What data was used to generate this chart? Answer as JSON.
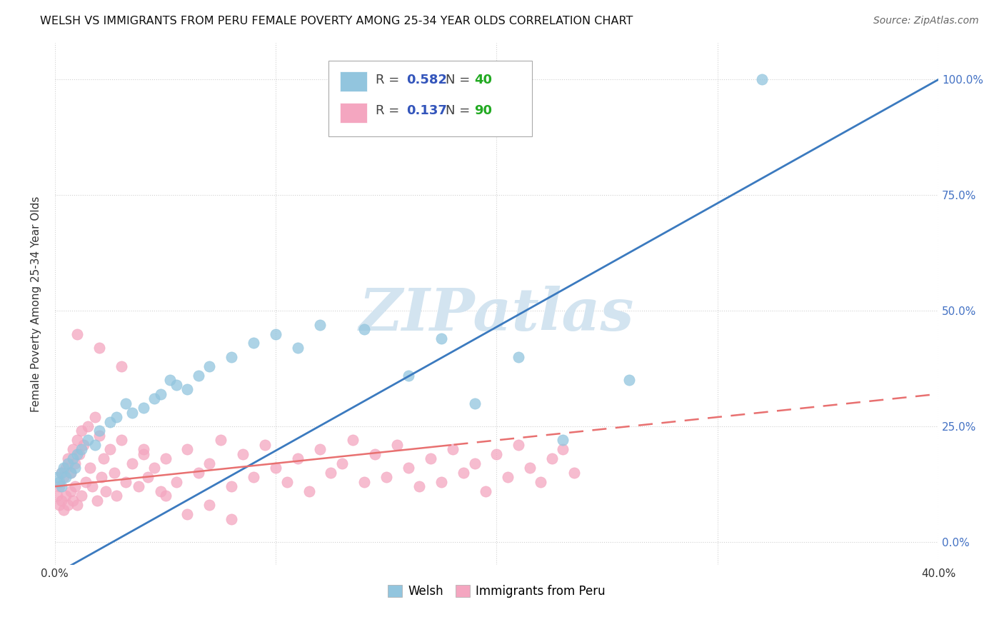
{
  "title": "WELSH VS IMMIGRANTS FROM PERU FEMALE POVERTY AMONG 25-34 YEAR OLDS CORRELATION CHART",
  "source": "Source: ZipAtlas.com",
  "ylabel": "Female Poverty Among 25-34 Year Olds",
  "xlim": [
    0.0,
    0.4
  ],
  "ylim": [
    -0.05,
    1.08
  ],
  "x_ticks": [
    0.0,
    0.1,
    0.2,
    0.3,
    0.4
  ],
  "y_ticks": [
    0.0,
    0.25,
    0.5,
    0.75,
    1.0
  ],
  "y_tick_labels_right": [
    "0.0%",
    "25.0%",
    "50.0%",
    "75.0%",
    "100.0%"
  ],
  "welsh_color": "#92c5de",
  "peru_color": "#f4a6c0",
  "welsh_line_color": "#3b7abf",
  "peru_line_color": "#e87070",
  "watermark_color": "#d3e4f0",
  "welsh_R": 0.582,
  "welsh_N": 40,
  "peru_R": 0.137,
  "peru_N": 90,
  "legend_R_color": "#3355bb",
  "legend_N_color": "#22aa22",
  "background_color": "#ffffff",
  "grid_color": "#cccccc",
  "welsh_scatter_x": [
    0.001,
    0.002,
    0.003,
    0.003,
    0.004,
    0.005,
    0.006,
    0.007,
    0.008,
    0.009,
    0.01,
    0.012,
    0.015,
    0.018,
    0.02,
    0.025,
    0.028,
    0.032,
    0.035,
    0.04,
    0.045,
    0.048,
    0.052,
    0.055,
    0.06,
    0.065,
    0.07,
    0.08,
    0.09,
    0.1,
    0.11,
    0.12,
    0.14,
    0.16,
    0.175,
    0.19,
    0.21,
    0.23,
    0.26,
    0.32
  ],
  "welsh_scatter_y": [
    0.14,
    0.13,
    0.15,
    0.12,
    0.16,
    0.14,
    0.17,
    0.15,
    0.18,
    0.16,
    0.19,
    0.2,
    0.22,
    0.21,
    0.24,
    0.26,
    0.27,
    0.3,
    0.28,
    0.29,
    0.31,
    0.32,
    0.35,
    0.34,
    0.33,
    0.36,
    0.38,
    0.4,
    0.43,
    0.45,
    0.42,
    0.47,
    0.46,
    0.36,
    0.44,
    0.3,
    0.4,
    0.22,
    0.35,
    1.0
  ],
  "peru_scatter_x": [
    0.001,
    0.002,
    0.002,
    0.003,
    0.003,
    0.004,
    0.004,
    0.005,
    0.005,
    0.006,
    0.006,
    0.007,
    0.007,
    0.008,
    0.008,
    0.009,
    0.009,
    0.01,
    0.01,
    0.011,
    0.012,
    0.012,
    0.013,
    0.014,
    0.015,
    0.016,
    0.017,
    0.018,
    0.019,
    0.02,
    0.021,
    0.022,
    0.023,
    0.025,
    0.027,
    0.028,
    0.03,
    0.032,
    0.035,
    0.038,
    0.04,
    0.042,
    0.045,
    0.048,
    0.05,
    0.055,
    0.06,
    0.065,
    0.07,
    0.075,
    0.08,
    0.085,
    0.09,
    0.095,
    0.1,
    0.105,
    0.11,
    0.115,
    0.12,
    0.125,
    0.13,
    0.135,
    0.14,
    0.145,
    0.15,
    0.155,
    0.16,
    0.165,
    0.17,
    0.175,
    0.18,
    0.185,
    0.19,
    0.195,
    0.2,
    0.205,
    0.21,
    0.215,
    0.22,
    0.225,
    0.23,
    0.235,
    0.01,
    0.02,
    0.03,
    0.04,
    0.05,
    0.06,
    0.07,
    0.08
  ],
  "peru_scatter_y": [
    0.1,
    0.12,
    0.08,
    0.15,
    0.09,
    0.14,
    0.07,
    0.16,
    0.1,
    0.18,
    0.08,
    0.15,
    0.11,
    0.2,
    0.09,
    0.17,
    0.12,
    0.22,
    0.08,
    0.19,
    0.24,
    0.1,
    0.21,
    0.13,
    0.25,
    0.16,
    0.12,
    0.27,
    0.09,
    0.23,
    0.14,
    0.18,
    0.11,
    0.2,
    0.15,
    0.1,
    0.22,
    0.13,
    0.17,
    0.12,
    0.19,
    0.14,
    0.16,
    0.11,
    0.18,
    0.13,
    0.2,
    0.15,
    0.17,
    0.22,
    0.12,
    0.19,
    0.14,
    0.21,
    0.16,
    0.13,
    0.18,
    0.11,
    0.2,
    0.15,
    0.17,
    0.22,
    0.13,
    0.19,
    0.14,
    0.21,
    0.16,
    0.12,
    0.18,
    0.13,
    0.2,
    0.15,
    0.17,
    0.11,
    0.19,
    0.14,
    0.21,
    0.16,
    0.13,
    0.18,
    0.2,
    0.15,
    0.45,
    0.42,
    0.38,
    0.2,
    0.1,
    0.06,
    0.08,
    0.05
  ],
  "welsh_line_x0": 0.0,
  "welsh_line_x1": 0.4,
  "peru_line_x0": 0.0,
  "peru_line_x1": 0.4,
  "peru_line_dashed": true
}
